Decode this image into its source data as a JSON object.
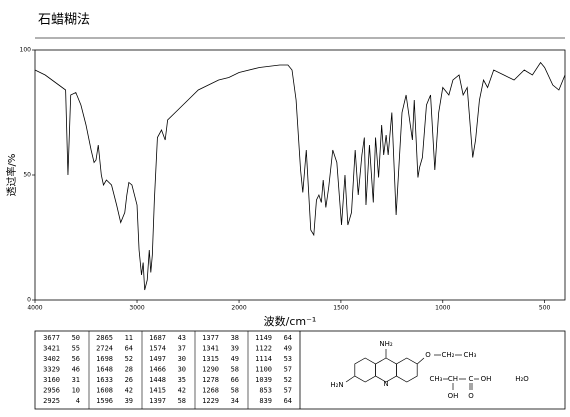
{
  "header": {
    "title": "石蜡糊法"
  },
  "chart_data": {
    "type": "line",
    "x_label": "波数/cm⁻¹",
    "y_label": "透过率/%",
    "x": [
      4000,
      3900,
      3800,
      3700,
      3677,
      3650,
      3600,
      3550,
      3500,
      3450,
      3421,
      3402,
      3380,
      3350,
      3329,
      3300,
      3250,
      3200,
      3160,
      3120,
      3100,
      3080,
      3050,
      3000,
      2980,
      2956,
      2940,
      2925,
      2900,
      2880,
      2865,
      2850,
      2830,
      2800,
      2760,
      2724,
      2700,
      2600,
      2500,
      2400,
      2300,
      2200,
      2100,
      2000,
      1900,
      1800,
      1760,
      1740,
      1720,
      1698,
      1687,
      1670,
      1648,
      1633,
      1620,
      1608,
      1596,
      1587,
      1574,
      1560,
      1540,
      1520,
      1497,
      1480,
      1466,
      1448,
      1430,
      1415,
      1397,
      1385,
      1377,
      1360,
      1341,
      1330,
      1315,
      1300,
      1290,
      1278,
      1268,
      1250,
      1229,
      1200,
      1180,
      1149,
      1140,
      1122,
      1114,
      1100,
      1080,
      1060,
      1039,
      1020,
      1000,
      970,
      950,
      920,
      900,
      880,
      853,
      839,
      820,
      800,
      780,
      750,
      700,
      650,
      600,
      560,
      520,
      500,
      460,
      430,
      400
    ],
    "values": [
      92,
      90,
      87,
      84,
      50,
      82,
      83,
      78,
      70,
      60,
      55,
      56,
      62,
      50,
      46,
      48,
      46,
      38,
      31,
      35,
      42,
      47,
      46,
      38,
      20,
      10,
      15,
      4,
      8,
      20,
      11,
      18,
      40,
      65,
      68,
      64,
      72,
      76,
      80,
      84,
      86,
      88,
      89,
      91,
      93,
      94,
      94,
      92,
      80,
      52,
      43,
      60,
      28,
      26,
      40,
      42,
      39,
      48,
      37,
      45,
      60,
      55,
      30,
      50,
      30,
      35,
      60,
      42,
      58,
      65,
      38,
      62,
      39,
      65,
      49,
      70,
      58,
      66,
      58,
      75,
      34,
      75,
      82,
      64,
      80,
      49,
      53,
      57,
      78,
      82,
      52,
      75,
      85,
      82,
      88,
      90,
      82,
      85,
      57,
      64,
      80,
      88,
      85,
      92,
      90,
      88,
      92,
      90,
      95,
      93,
      86,
      84,
      90
    ],
    "color": "#000000",
    "xlim": [
      4000,
      400
    ],
    "xbreak": 2000,
    "xticks": [
      4000,
      3000,
      2000,
      1500,
      1000,
      500
    ],
    "ylim": [
      0,
      100
    ],
    "yticks": [
      0,
      50,
      100
    ],
    "grid": false
  },
  "peak_table": {
    "columns": [
      [
        [
          3677,
          50
        ],
        [
          3421,
          55
        ],
        [
          3402,
          56
        ],
        [
          3329,
          46
        ],
        [
          3160,
          31
        ],
        [
          2956,
          10
        ],
        [
          2925,
          4
        ]
      ],
      [
        [
          2865,
          11
        ],
        [
          2724,
          64
        ],
        [
          1698,
          52
        ],
        [
          1648,
          28
        ],
        [
          1633,
          26
        ],
        [
          1608,
          42
        ],
        [
          1596,
          39
        ]
      ],
      [
        [
          1687,
          43
        ],
        [
          1574,
          37
        ],
        [
          1497,
          30
        ],
        [
          1466,
          30
        ],
        [
          1448,
          35
        ],
        [
          1415,
          42
        ],
        [
          1397,
          58
        ]
      ],
      [
        [
          1377,
          38
        ],
        [
          1341,
          39
        ],
        [
          1315,
          49
        ],
        [
          1290,
          58
        ],
        [
          1278,
          66
        ],
        [
          1268,
          58
        ],
        [
          1229,
          34
        ]
      ],
      [
        [
          1149,
          64
        ],
        [
          1122,
          49
        ],
        [
          1114,
          53
        ],
        [
          1100,
          57
        ],
        [
          1039,
          52
        ],
        [
          853,
          57
        ],
        [
          839,
          64
        ]
      ]
    ]
  },
  "structure": {
    "labels": [
      "NH₂",
      "H₂N",
      "N",
      "O",
      "CH₂",
      "CH₃",
      "CH₃",
      "CH",
      "C",
      "OH",
      "OH",
      "O",
      "H₂O"
    ]
  }
}
